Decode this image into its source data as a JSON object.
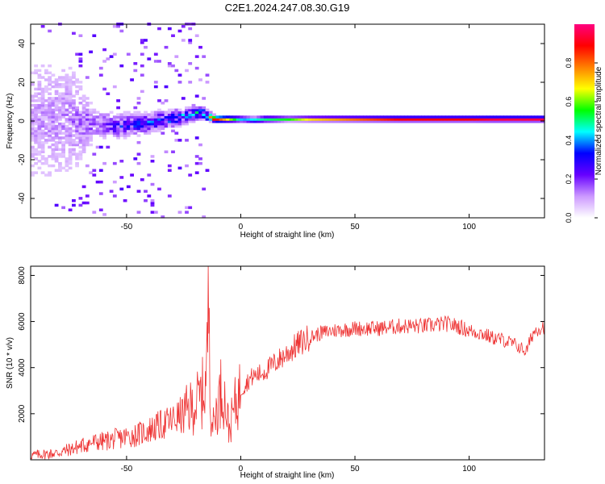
{
  "title": "C2E1.2024.247.08.30.G19",
  "chart_data": [
    {
      "type": "heatmap",
      "title": "C2E1.2024.247.08.30.G19",
      "xlabel": "Height of straight line (km)",
      "ylabel": "Frequency (Hz)",
      "xlim": [
        -92,
        133
      ],
      "ylim": [
        -50,
        50
      ],
      "xticks": [
        -50,
        0,
        50,
        100
      ],
      "yticks": [
        -40,
        -20,
        0,
        20,
        40
      ],
      "colorbar": {
        "label": "Normalized spectral amplitude",
        "range": [
          0,
          1
        ],
        "ticks": [
          "0.0",
          "0.2",
          "0.4",
          "0.6",
          "0.8"
        ],
        "colors": [
          "#ffffff",
          "#cc99ff",
          "#6600ff",
          "#0000ff",
          "#00ffff",
          "#00ff00",
          "#ffff00",
          "#ff8000",
          "#ff0000",
          "#ff0080"
        ]
      },
      "band_profile": {
        "x": [
          -92,
          -75,
          -65,
          -55,
          -45,
          -35,
          -25,
          -18,
          -12,
          0,
          5,
          10,
          20,
          30,
          50,
          70,
          100,
          110,
          133
        ],
        "center_frequency": [
          0,
          0,
          -2,
          -3,
          -2,
          0,
          2,
          4,
          0.5,
          0.5,
          0,
          0.5,
          0.5,
          0.5,
          0.5,
          0.5,
          0.5,
          0.5,
          0.5
        ],
        "spread_hz": [
          50,
          40,
          10,
          8,
          7,
          6,
          5,
          4,
          2,
          2,
          2,
          2,
          1.5,
          1.5,
          1.5,
          1.5,
          1.5,
          1.5,
          1.5
        ],
        "amplitude": [
          0.12,
          0.15,
          0.2,
          0.3,
          0.35,
          0.4,
          0.45,
          0.5,
          0.9,
          0.4,
          0.45,
          0.5,
          0.55,
          0.7,
          0.8,
          0.9,
          0.9,
          0.95,
          0.95
        ]
      }
    },
    {
      "type": "line",
      "xlabel": "Height of straight line (km)",
      "ylabel": "SNR (10 * v/v)",
      "xlim": [
        -92,
        133
      ],
      "ylim": [
        0,
        8400
      ],
      "xticks": [
        -50,
        0,
        50,
        100
      ],
      "yticks": [
        2000,
        4000,
        6000,
        8000
      ],
      "color": "#ee3333",
      "series": [
        {
          "x": [
            -92,
            -85,
            -80,
            -75,
            -70,
            -65,
            -60,
            -55,
            -50,
            -45,
            -40,
            -35,
            -30,
            -25,
            -20,
            -17,
            -15,
            -14,
            -13,
            -12,
            -10,
            -8,
            -5,
            -3,
            0,
            3,
            5,
            10,
            15,
            20,
            25,
            30,
            35,
            40,
            50,
            60,
            70,
            80,
            90,
            95,
            100,
            105,
            110,
            115,
            120,
            125,
            128,
            130,
            133
          ],
          "y": [
            200,
            250,
            300,
            450,
            600,
            750,
            800,
            900,
            1000,
            1100,
            1300,
            1500,
            1700,
            2000,
            2400,
            2800,
            3500,
            8100,
            2000,
            1500,
            2500,
            3200,
            1300,
            2200,
            3000,
            3400,
            3600,
            3800,
            4200,
            4600,
            5000,
            5300,
            5500,
            5600,
            5700,
            5700,
            5800,
            5800,
            5900,
            5800,
            5600,
            5500,
            5300,
            5200,
            5000,
            4700,
            5500,
            5700,
            5800
          ]
        }
      ]
    }
  ]
}
